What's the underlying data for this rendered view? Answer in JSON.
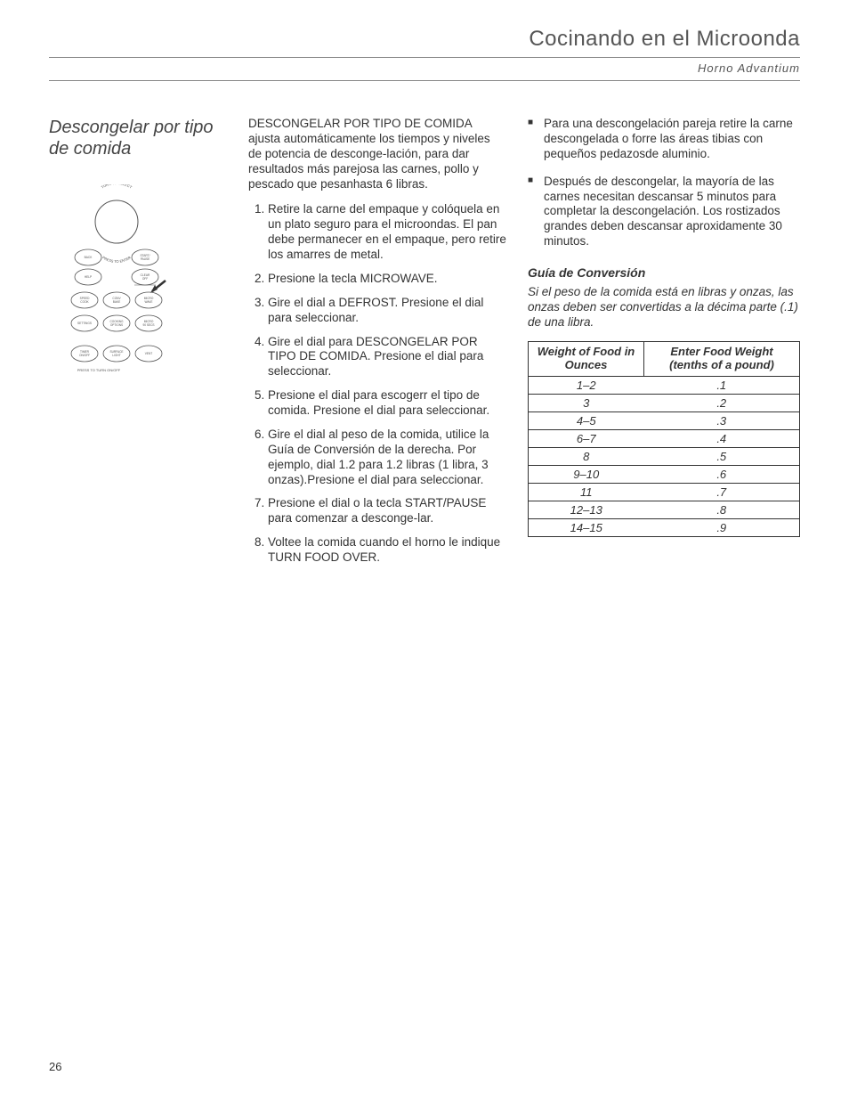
{
  "header": {
    "title": "Cocinando en el Microonda",
    "subtitle": "Horno Advantium"
  },
  "left": {
    "heading": "Descongelar por tipo de comida",
    "panel": {
      "dial_top_text": "TURN TO SELECT",
      "dial_bottom_text": "PRESS TO ENTER",
      "buttons": [
        {
          "line1": "BACK",
          "line2": ""
        },
        {
          "line1": "START/",
          "line2": "PAUSE"
        },
        {
          "line1": "HELP",
          "line2": ""
        },
        {
          "line1": "CLEAR",
          "line2": "OFF"
        },
        {
          "line1": "SPEED",
          "line2": "COOK"
        },
        {
          "line1": "CONV",
          "line2": "BAKE"
        },
        {
          "line1": "MICRO",
          "line2": "WAVE"
        },
        {
          "line1": "SETTINGS",
          "line2": ""
        },
        {
          "line1": "COOKING",
          "line2": "OPTIONS"
        },
        {
          "line1": "MICRO",
          "line2": "90 SECS"
        },
        {
          "line1": "TIMER",
          "line2": "ON/OFF"
        },
        {
          "line1": "SURFACE",
          "line2": "LIGHT"
        },
        {
          "line1": "VENT",
          "line2": ""
        }
      ],
      "bottom_text": "PRESS TO TURN ON/OFF"
    }
  },
  "mid": {
    "intro": "DESCONGELAR POR TIPO DE COMIDA ajusta automáticamente los tiempos y niveles de potencia de desconge-lación, para dar resultados más parejosa las carnes, pollo y pescado que pesanhasta 6 libras.",
    "steps": [
      "Retire la carne del empaque y colóquela en un plato seguro para el microondas.  El pan debe permanecer en el empaque, pero retire los amarres de metal.",
      "Presione la tecla MICROWAVE.",
      "Gire el dial a DEFROST.  Presione el dial para seleccionar.",
      "Gire el dial para DESCONGELAR POR TIPO DE COMIDA.  Presione el dial para seleccionar.",
      "Presione el dial para escogerr el tipo de comida.  Presione el dial para seleccionar.",
      "Gire el dial al peso de la comida, utilice la Guía de Conversión de la derecha.  Por ejemplo, dial 1.2 para 1.2 libras (1 libra, 3 onzas).Presione el dial para seleccionar.",
      "Presione el dial o la tecla START/PAUSE para comenzar a desconge-lar.",
      "Voltee la comida cuando el horno le indique TURN FOOD OVER."
    ]
  },
  "right": {
    "bullets": [
      "Para una descongelación pareja retire la carne descongelada o forre las áreas tibias con pequeños pedazosde aluminio.",
      "Después de descongelar, la mayoría de las carnes necesitan descansar 5 minutos para completar la descongelación.  Los rostizados grandes deben descansar aproxidamente 30 minutos."
    ],
    "guide_heading": "Guía de Conversión",
    "guide_note": "Si el peso de la comida está en libras y onzas, las onzas deben ser convertidas a la décima parte (.1) de una libra.",
    "table": {
      "col1_header": "Weight of Food in Ounces",
      "col2_header": "Enter Food Weight (tenths of a pound)",
      "rows": [
        [
          "1–2",
          ".1"
        ],
        [
          "3",
          ".2"
        ],
        [
          "4–5",
          ".3"
        ],
        [
          "6–7",
          ".4"
        ],
        [
          "8",
          ".5"
        ],
        [
          "9–10",
          ".6"
        ],
        [
          "11",
          ".7"
        ],
        [
          "12–13",
          ".8"
        ],
        [
          "14–15",
          ".9"
        ]
      ]
    }
  },
  "page_number": "26"
}
